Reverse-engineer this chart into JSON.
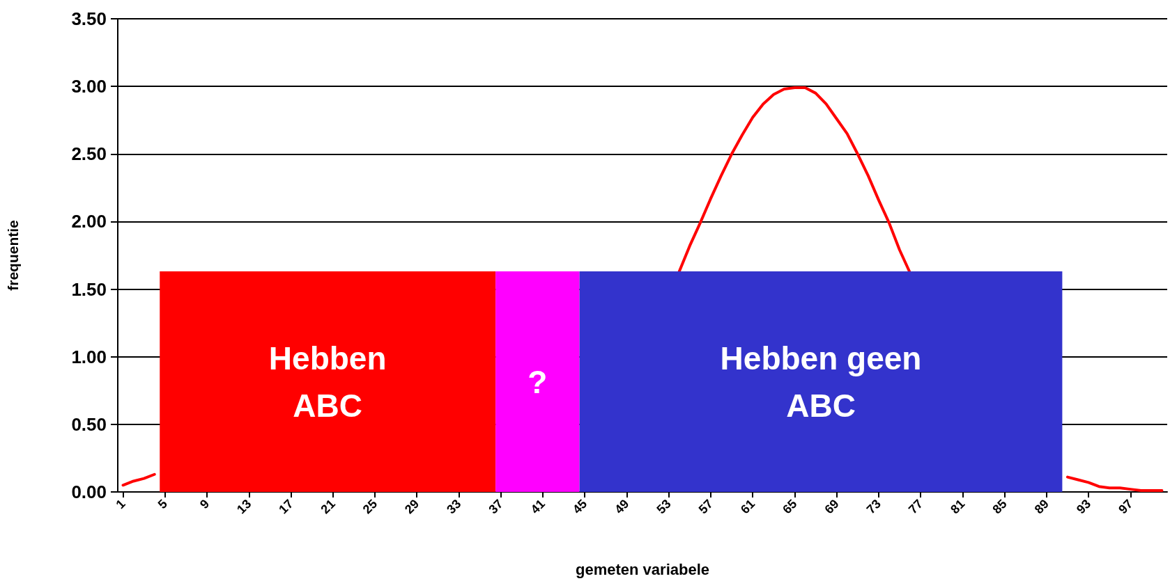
{
  "chart_data": {
    "type": "line",
    "xlabel": "gemeten variabele",
    "ylabel": "frequentie",
    "x": [
      1,
      2,
      3,
      4,
      5,
      6,
      7,
      8,
      9,
      10,
      11,
      12,
      13,
      14,
      15,
      16,
      17,
      18,
      19,
      20,
      21,
      22,
      23,
      24,
      25,
      26,
      27,
      28,
      29,
      30,
      31,
      32,
      33,
      34,
      35,
      36,
      37,
      38,
      39,
      40,
      41,
      42,
      43,
      44,
      45,
      46,
      47,
      48,
      49,
      50,
      51,
      52,
      53,
      54,
      55,
      56,
      57,
      58,
      59,
      60,
      61,
      62,
      63,
      64,
      65,
      66,
      67,
      68,
      69,
      70,
      71,
      72,
      73,
      74,
      75,
      76,
      77,
      78,
      79,
      80,
      81,
      82,
      83,
      84,
      85,
      86,
      87,
      88,
      89,
      90,
      91,
      92,
      93,
      94,
      95,
      96,
      97,
      98,
      99,
      100
    ],
    "series": [
      {
        "color": "#ff0000",
        "values": [
          0.05,
          0.08,
          0.1,
          0.13,
          null,
          null,
          null,
          null,
          null,
          null,
          null,
          null,
          null,
          null,
          null,
          null,
          null,
          null,
          null,
          null,
          null,
          null,
          null,
          null,
          null,
          null,
          null,
          null,
          null,
          null,
          null,
          null,
          null,
          null,
          null,
          null,
          null,
          null,
          null,
          null,
          null,
          null,
          null,
          null,
          null,
          null,
          null,
          null,
          null,
          null,
          null,
          null,
          null,
          1.63,
          1.82,
          1.99,
          2.17,
          2.34,
          2.5,
          2.64,
          2.77,
          2.87,
          2.94,
          2.98,
          2.99,
          2.99,
          2.95,
          2.87,
          2.76,
          2.65,
          2.5,
          2.34,
          2.16,
          1.99,
          1.79,
          1.62,
          null,
          null,
          null,
          null,
          null,
          null,
          null,
          null,
          null,
          null,
          null,
          null,
          null,
          null,
          0.11,
          0.09,
          0.07,
          0.04,
          0.03,
          0.03,
          0.02,
          0.01,
          0.01,
          0.01
        ]
      }
    ],
    "xlim": [
      0.5,
      100.5
    ],
    "xticks": [
      1,
      5,
      9,
      13,
      17,
      21,
      25,
      29,
      33,
      37,
      41,
      45,
      49,
      53,
      57,
      61,
      65,
      69,
      73,
      77,
      81,
      85,
      89,
      93,
      97
    ],
    "ylim": [
      0,
      3.5
    ],
    "yticks": [
      {
        "value": 0,
        "label": "0.00"
      },
      {
        "value": 0.5,
        "label": "0.50"
      },
      {
        "value": 1,
        "label": "1.00"
      },
      {
        "value": 1.5,
        "label": "1.50"
      },
      {
        "value": 2,
        "label": "2.00"
      },
      {
        "value": 2.5,
        "label": "2.50"
      },
      {
        "value": 3,
        "label": "3.00"
      },
      {
        "value": 3.5,
        "label": "3.50"
      }
    ],
    "grid": "y",
    "marker": "none",
    "line_style": "solid",
    "bands": [
      {
        "axis": "x",
        "from": 4.5,
        "to": 36.5,
        "label": "Hebben\nABC",
        "color": "#ff0000"
      },
      {
        "axis": "x",
        "from": 36.5,
        "to": 44.5,
        "label": "?",
        "color": "#ff00ff"
      },
      {
        "axis": "x",
        "from": 44.5,
        "to": 90.5,
        "label": "Hebben geen\nABC",
        "color": "#3333cc"
      }
    ]
  }
}
